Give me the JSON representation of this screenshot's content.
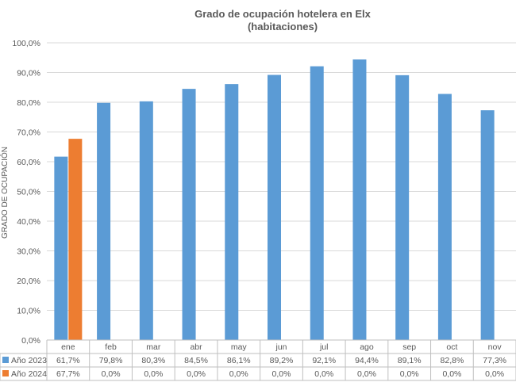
{
  "chart_data": {
    "type": "bar",
    "title": "Grado de ocupación hotelera en Elx",
    "subtitle": "(habitaciones)",
    "ylabel": "GRADO DE OCUPACIÓN",
    "xlabel": "",
    "ylim": [
      0,
      100
    ],
    "ytick_step": 10,
    "ytick_labels": [
      "0,0%",
      "10,0%",
      "20,0%",
      "30,0%",
      "40,0%",
      "50,0%",
      "60,0%",
      "70,0%",
      "80,0%",
      "90,0%",
      "100,0%"
    ],
    "grid": true,
    "legend": "data-table",
    "categories": [
      "ene",
      "feb",
      "mar",
      "abr",
      "may",
      "jun",
      "jul",
      "ago",
      "sep",
      "oct",
      "nov"
    ],
    "series": [
      {
        "name": "Año 2023",
        "color": "#5B9BD5",
        "values": [
          61.7,
          79.8,
          80.3,
          84.5,
          86.1,
          89.2,
          92.1,
          94.4,
          89.1,
          82.8,
          77.3
        ],
        "labels": [
          "61,7%",
          "79,8%",
          "80,3%",
          "84,5%",
          "86,1%",
          "89,2%",
          "92,1%",
          "94,4%",
          "89,1%",
          "82,8%",
          "77,3%"
        ]
      },
      {
        "name": "Año 2024",
        "color": "#ED7D31",
        "values": [
          67.7,
          0,
          0,
          0,
          0,
          0,
          0,
          0,
          0,
          0,
          0
        ],
        "labels": [
          "67,7%",
          "0,0%",
          "0,0%",
          "0,0%",
          "0,0%",
          "0,0%",
          "0,0%",
          "0,0%",
          "0,0%",
          "0,0%",
          "0,0%"
        ]
      }
    ]
  }
}
